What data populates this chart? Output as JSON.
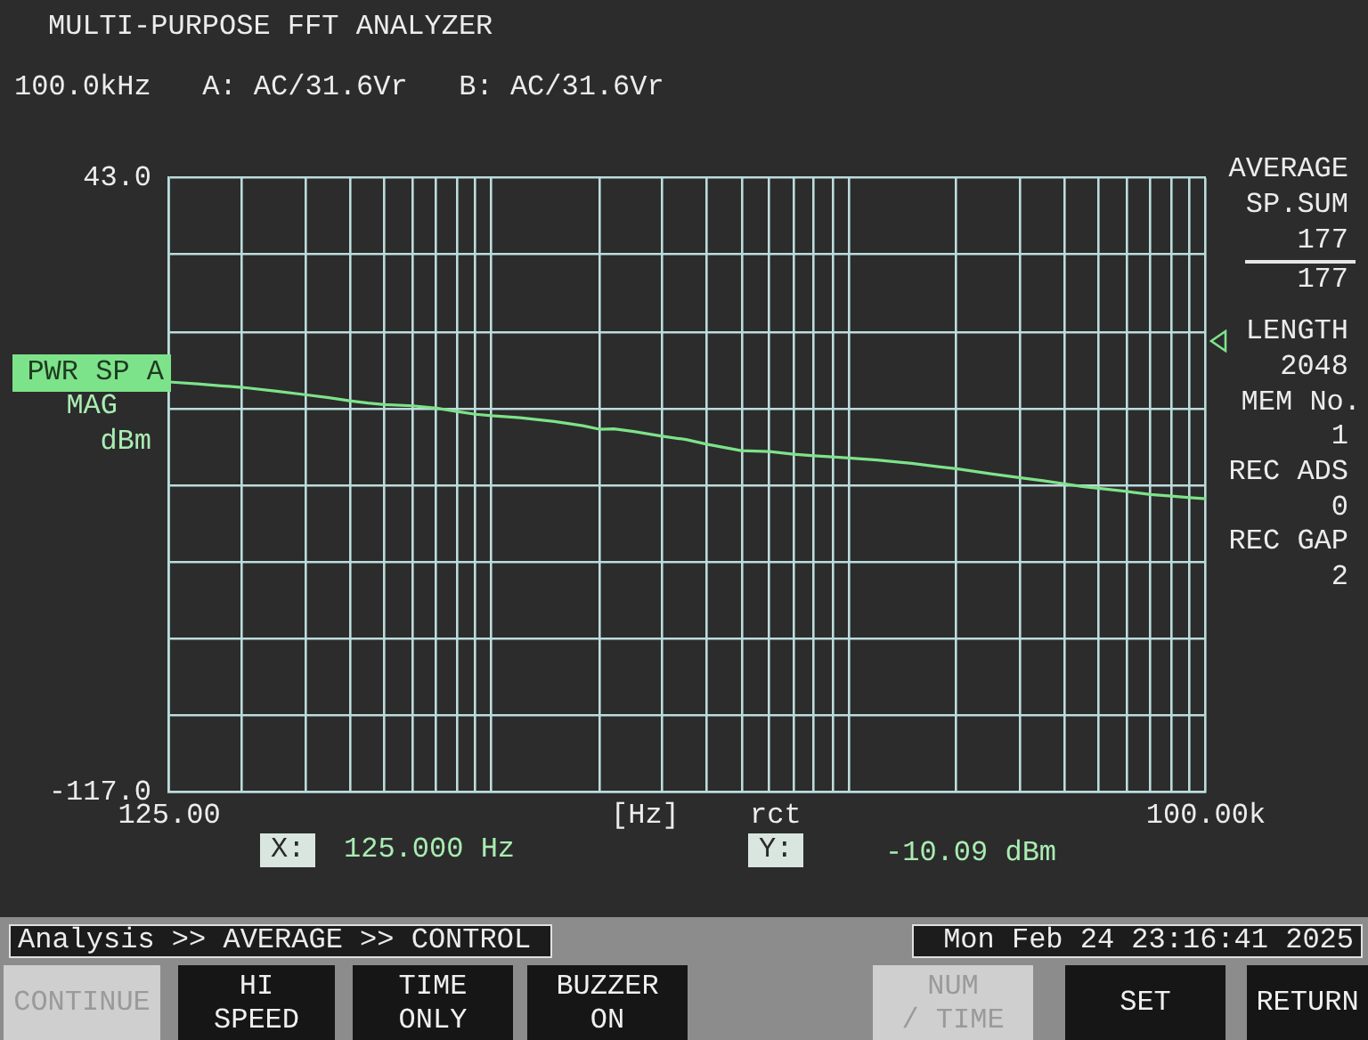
{
  "chart_data": {
    "type": "line",
    "title": "MULTI-PURPOSE FFT ANALYZER",
    "subtitle": "100.0kHz   A: AC/31.6Vr   B: AC/31.6Vr",
    "xlabel": "[Hz]",
    "ylabel": "dBm",
    "annotations": [
      "MAG",
      "rct",
      "X:",
      "125.000 Hz",
      "Y:",
      "-10.09 dBm",
      "AVERAGE",
      "SP.SUM",
      "177",
      "177",
      "LENGTH",
      "2048",
      "MEM No.",
      "1",
      "REC ADS",
      "0",
      "REC GAP",
      "2",
      "Analysis >> AVERAGE >> CONTROL",
      "Mon Feb 24 23:16:41 2025",
      "CONTINUE",
      "HI\nSPEED",
      "TIME\nONLY",
      "BUZZER\nON",
      "NUM\n/ TIME",
      "SET",
      "RETURN"
    ],
    "x": [
      125,
      150,
      175,
      200,
      250,
      300,
      350,
      400,
      450,
      500,
      600,
      700,
      800,
      900,
      1000,
      1200,
      1500,
      1800,
      2000,
      2200,
      2500,
      3000,
      3500,
      4000,
      5000,
      6000,
      7000,
      8000,
      9000,
      10000,
      12000,
      15000,
      18000,
      20000,
      25000,
      30000,
      35000,
      40000,
      45000,
      50000,
      60000,
      70000,
      80000,
      90000,
      100000
    ],
    "series": [
      {
        "name": "PWR SP A",
        "color": "#7de38a",
        "values": [
          -10.1,
          -10.6,
          -11.1,
          -11.5,
          -12.5,
          -13.4,
          -14.2,
          -15.0,
          -15.6,
          -16.0,
          -16.3,
          -16.9,
          -17.8,
          -18.5,
          -18.9,
          -19.4,
          -20.4,
          -21.5,
          -22.4,
          -22.3,
          -23.0,
          -24.2,
          -25.1,
          -26.3,
          -28.0,
          -28.2,
          -28.9,
          -29.3,
          -29.6,
          -29.9,
          -30.4,
          -31.3,
          -32.2,
          -32.7,
          -34.0,
          -35.0,
          -35.8,
          -36.6,
          -37.3,
          -37.8,
          -38.6,
          -39.4,
          -39.8,
          -40.2,
          -40.5
        ]
      }
    ],
    "xlim": [
      125,
      100000
    ],
    "ylim": [
      -117,
      43
    ],
    "xticks": [
      {
        "value": 125,
        "label": "125.00"
      },
      {
        "value": 200,
        "label": null
      },
      {
        "value": 300,
        "label": null
      },
      {
        "value": 400,
        "label": null
      },
      {
        "value": 500,
        "label": null
      },
      {
        "value": 600,
        "label": null
      },
      {
        "value": 700,
        "label": null
      },
      {
        "value": 800,
        "label": null
      },
      {
        "value": 900,
        "label": null
      },
      {
        "value": 1000,
        "label": null
      },
      {
        "value": 2000,
        "label": null
      },
      {
        "value": 3000,
        "label": null
      },
      {
        "value": 4000,
        "label": null
      },
      {
        "value": 5000,
        "label": null
      },
      {
        "value": 6000,
        "label": null
      },
      {
        "value": 7000,
        "label": null
      },
      {
        "value": 8000,
        "label": null
      },
      {
        "value": 9000,
        "label": null
      },
      {
        "value": 10000,
        "label": null
      },
      {
        "value": 20000,
        "label": null
      },
      {
        "value": 30000,
        "label": null
      },
      {
        "value": 40000,
        "label": null
      },
      {
        "value": 50000,
        "label": null
      },
      {
        "value": 60000,
        "label": null
      },
      {
        "value": 70000,
        "label": null
      },
      {
        "value": 80000,
        "label": null
      },
      {
        "value": 90000,
        "label": null
      },
      {
        "value": 100000,
        "label": "100.00k"
      }
    ],
    "yticks": [
      {
        "value": -117,
        "label": "-117.0"
      },
      {
        "value": -97,
        "label": null
      },
      {
        "value": -77,
        "label": null
      },
      {
        "value": -57,
        "label": null
      },
      {
        "value": -37,
        "label": null
      },
      {
        "value": -17,
        "label": null
      },
      {
        "value": 3,
        "label": null
      },
      {
        "value": 23,
        "label": null
      },
      {
        "value": 43,
        "label": "43.0"
      }
    ],
    "log": "x",
    "grid": true,
    "line_style": "solid"
  }
}
